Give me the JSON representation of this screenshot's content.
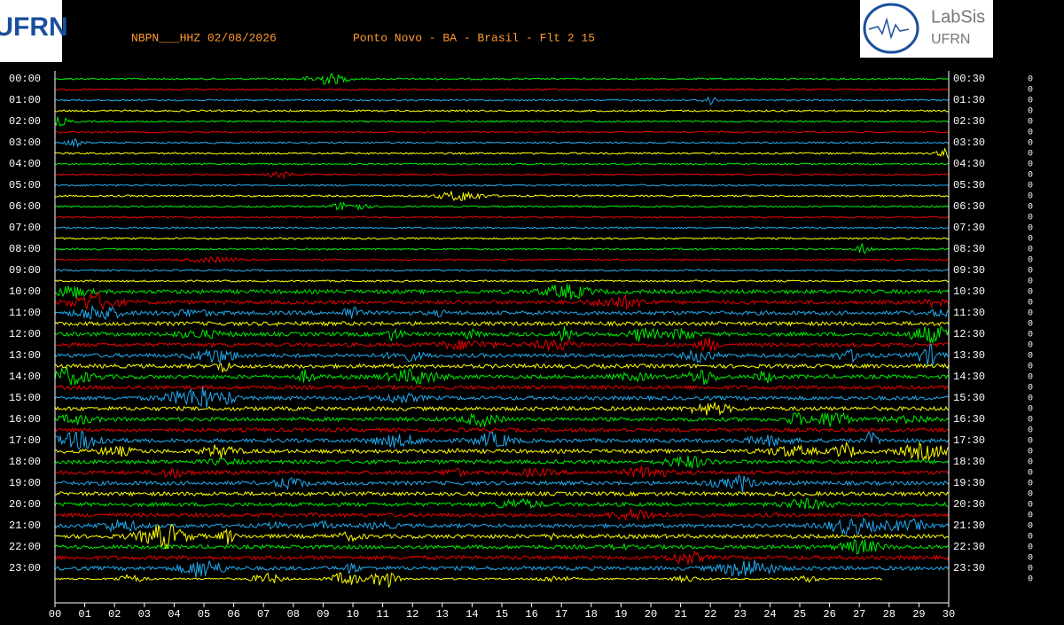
{
  "header": {
    "station": "NBPN___HHZ 02/08/2026",
    "location": "Ponto Novo - BA - Brasil - Flt 2 15",
    "logo_left": "UFRN",
    "logo_right": {
      "name": "LabSis",
      "org": "UFRN"
    }
  },
  "left_labels": [
    "00:00",
    "01:00",
    "02:00",
    "03:00",
    "04:00",
    "05:00",
    "06:00",
    "07:00",
    "08:00",
    "09:00",
    "10:00",
    "11:00",
    "12:00",
    "13:00",
    "14:00",
    "15:00",
    "16:00",
    "17:00",
    "18:00",
    "19:00",
    "20:00",
    "21:00",
    "22:00",
    "23:00"
  ],
  "right_labels": [
    "00:30",
    "01:30",
    "02:30",
    "03:30",
    "04:30",
    "05:30",
    "06:30",
    "07:30",
    "08:30",
    "09:30",
    "10:30",
    "11:30",
    "12:30",
    "13:30",
    "14:30",
    "15:30",
    "16:30",
    "17:30",
    "18:30",
    "19:30",
    "20:30",
    "21:30",
    "22:30",
    "23:30"
  ],
  "x_ticks": [
    "00",
    "01",
    "02",
    "03",
    "04",
    "05",
    "06",
    "07",
    "08",
    "09",
    "10",
    "11",
    "12",
    "13",
    "14",
    "15",
    "16",
    "17",
    "18",
    "19",
    "20",
    "21",
    "22",
    "23",
    "24",
    "25",
    "26",
    "27",
    "28",
    "29",
    "30"
  ],
  "right_markers": [
    "0",
    "0",
    "0",
    "0",
    "0",
    "0",
    "0",
    "0",
    "0",
    "0",
    "0",
    "0",
    "0",
    "0",
    "0",
    "0",
    "0",
    "0",
    "0",
    "0",
    "0",
    "0",
    "0",
    "0",
    "0",
    "0",
    "0",
    "0",
    "0",
    "0",
    "0",
    "0",
    "0",
    "0",
    "0",
    "0",
    "0",
    "0",
    "0",
    "0",
    "0",
    "0",
    "0",
    "0",
    "0",
    "0",
    "0",
    "0"
  ]
}
